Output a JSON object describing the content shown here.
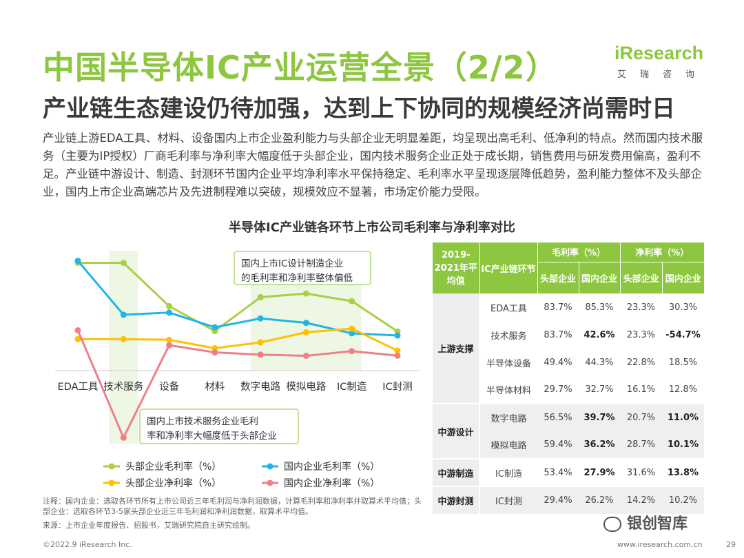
{
  "header": {
    "title": "中国半导体IC产业运营全景（2/2）",
    "subtitle": "产业链生态建设仍待加强，达到上下协同的规模经济尚需时日"
  },
  "logo": {
    "main": "iResearch",
    "sub": "艾瑞咨询"
  },
  "intro": "产业链上游EDA工具、材料、设备国内上市企业盈利能力与头部企业无明显差距，均呈现出高毛利、低净利的特点。然而国内技术服务（主要为IP授权）厂商毛利率与净利率大幅度低于头部企业，国内技术服务企业正处于成长期，销售费用与研发费用偏高，盈利不足。产业链中游设计、制造、封测环节国内企业平均净利率水平保持稳定、毛利率水平呈现逐层降低趋势，盈利能力整体不及头部企业，国内上市企业高端芯片及先进制程难以突破，规模效应不显著，市场定价能力受限。",
  "chart_title": "半导体IC产业链各环节上市公司毛利率与净利率对比",
  "chart_data": {
    "type": "line",
    "categories": [
      "EDA工具",
      "技术服务",
      "设备",
      "材料",
      "数字电路",
      "模拟电路",
      "IC制造",
      "IC封测"
    ],
    "series": [
      {
        "name": "头部企业毛利率（%）",
        "color": "#a8cf45",
        "values": [
          83.7,
          83.7,
          49.4,
          29.7,
          56.5,
          59.4,
          53.4,
          29.4
        ]
      },
      {
        "name": "国内企业毛利率（%）",
        "color": "#1eb6e8",
        "values": [
          85.3,
          42.6,
          44.3,
          32.7,
          39.7,
          36.2,
          27.9,
          26.2
        ]
      },
      {
        "name": "头部企业净利率（%）",
        "color": "#ffc000",
        "values": [
          23.3,
          23.3,
          22.8,
          16.1,
          20.7,
          28.7,
          31.6,
          14.2
        ]
      },
      {
        "name": "国内企业净利率（%）",
        "color": "#f07f86",
        "values": [
          30.3,
          -54.7,
          18.5,
          12.8,
          11.0,
          10.1,
          13.8,
          10.2
        ]
      }
    ],
    "ylim": [
      -60,
      90
    ],
    "grid": false,
    "legend": "bottom",
    "annotations": [
      "国内上市IC设计制造企业的毛利率和净利率整体偏低",
      "国内上市技术服务企业毛利率和净利率大幅度低于头部企业"
    ]
  },
  "table": {
    "corner": "2019-2021年平均值",
    "col_segment": "IC产业链环节",
    "group_gross": "毛利率（%）",
    "group_net": "净利率（%）",
    "sub_head": "头部企业",
    "sub_domestic": "国内企业",
    "groups": [
      {
        "label": "上游支撑",
        "shade": false,
        "rows": [
          {
            "seg": "EDA工具",
            "v": [
              "83.7%",
              "85.3%",
              "23.3%",
              "30.3%"
            ],
            "b": [
              false,
              false,
              false,
              false
            ]
          },
          {
            "seg": "技术服务",
            "v": [
              "83.7%",
              "42.6%",
              "23.3%",
              "-54.7%"
            ],
            "b": [
              false,
              true,
              false,
              true
            ]
          },
          {
            "seg": "半导体设备",
            "v": [
              "49.4%",
              "44.3%",
              "22.8%",
              "18.5%"
            ],
            "b": [
              false,
              false,
              false,
              false
            ]
          },
          {
            "seg": "半导体材料",
            "v": [
              "29.7%",
              "32.7%",
              "16.1%",
              "12.8%"
            ],
            "b": [
              false,
              false,
              false,
              false
            ]
          }
        ]
      },
      {
        "label": "中游设计",
        "shade": true,
        "rows": [
          {
            "seg": "数字电路",
            "v": [
              "56.5%",
              "39.7%",
              "20.7%",
              "11.0%"
            ],
            "b": [
              false,
              true,
              false,
              true
            ]
          },
          {
            "seg": "模拟电路",
            "v": [
              "59.4%",
              "36.2%",
              "28.7%",
              "10.1%"
            ],
            "b": [
              false,
              true,
              false,
              true
            ]
          }
        ]
      },
      {
        "label": "中游制造",
        "shade": false,
        "rows": [
          {
            "seg": "IC制造",
            "v": [
              "53.4%",
              "27.9%",
              "31.6%",
              "13.8%"
            ],
            "b": [
              false,
              true,
              false,
              true
            ]
          }
        ]
      },
      {
        "label": "中游封测",
        "shade": true,
        "rows": [
          {
            "seg": "IC封测",
            "v": [
              "29.4%",
              "26.2%",
              "14.2%",
              "10.2%"
            ],
            "b": [
              false,
              false,
              false,
              false
            ]
          }
        ]
      }
    ]
  },
  "footer": {
    "note": "注释：国内企业：选取各环节所有上市公司近三年毛利润与净利润数据，计算毛利率和净利率并取算术平均值；头部企业：选取各环节3-5家头部企业近三年毛利润和净利润数据，取算术平均值。",
    "source": "来源：上市企业年度报告、招股书，艾瑞研究院自主研究绘制。",
    "copyright": "©2022.9 iResearch Inc.",
    "website": "www.iresearch.com.cn",
    "page": "29",
    "watermark": "银创智库"
  }
}
